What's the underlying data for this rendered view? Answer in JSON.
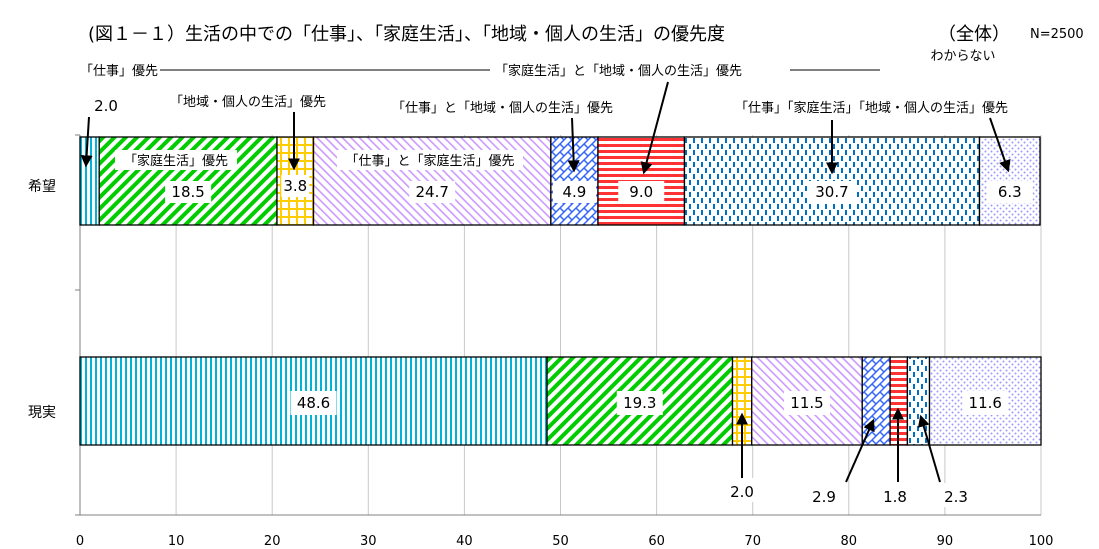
{
  "chart_data": {
    "type": "bar",
    "orientation": "horizontal",
    "stacked": true,
    "title": "(図１－１）生活の中での「仕事」、「家庭生活」、「地域・個人の生活」の優先度",
    "scope": "（全体）",
    "n_label": "N=2500",
    "xlim": [
      0,
      100
    ],
    "x_ticks": [
      "0",
      "10",
      "20",
      "30",
      "40",
      "50",
      "60",
      "70",
      "80",
      "90",
      "100"
    ],
    "grid": true,
    "categories": [
      "希望",
      "現実"
    ],
    "series": [
      {
        "name": "「仕事」優先",
        "color": "#00b4d8",
        "values": [
          2.0,
          48.6
        ],
        "labels": [
          "2.0",
          "48.6"
        ]
      },
      {
        "name": "「家庭生活」優先",
        "color": "#00cc00",
        "values": [
          18.5,
          19.3
        ],
        "labels": [
          "18.5",
          "19.3"
        ]
      },
      {
        "name": "「地域・個人の生活」優先",
        "color": "#ffcc00",
        "values": [
          3.8,
          2.0
        ],
        "labels": [
          "3.8",
          "2.0"
        ]
      },
      {
        "name": "「仕事」と「家庭生活」優先",
        "color": "#cc99ff",
        "values": [
          24.7,
          11.5
        ],
        "labels": [
          "24.7",
          "11.5"
        ]
      },
      {
        "name": "「仕事」と「地域・個人の生活」優先",
        "color": "#3366ff",
        "values": [
          4.9,
          2.9
        ],
        "labels": [
          "4.9",
          "2.9"
        ]
      },
      {
        "name": "「家庭生活」と「地域・個人の生活」優先",
        "color": "#ff3333",
        "values": [
          9.0,
          1.8
        ],
        "labels": [
          "9.0",
          "1.8"
        ]
      },
      {
        "name": "「仕事」「家庭生活」「地域・個人の生活」優先",
        "color": "#0070c0",
        "values": [
          30.7,
          2.3
        ],
        "labels": [
          "30.7",
          "2.3"
        ]
      },
      {
        "name": "わからない",
        "color": "#9999ff",
        "values": [
          6.3,
          11.6
        ],
        "labels": [
          "6.3",
          "11.6"
        ]
      }
    ]
  }
}
